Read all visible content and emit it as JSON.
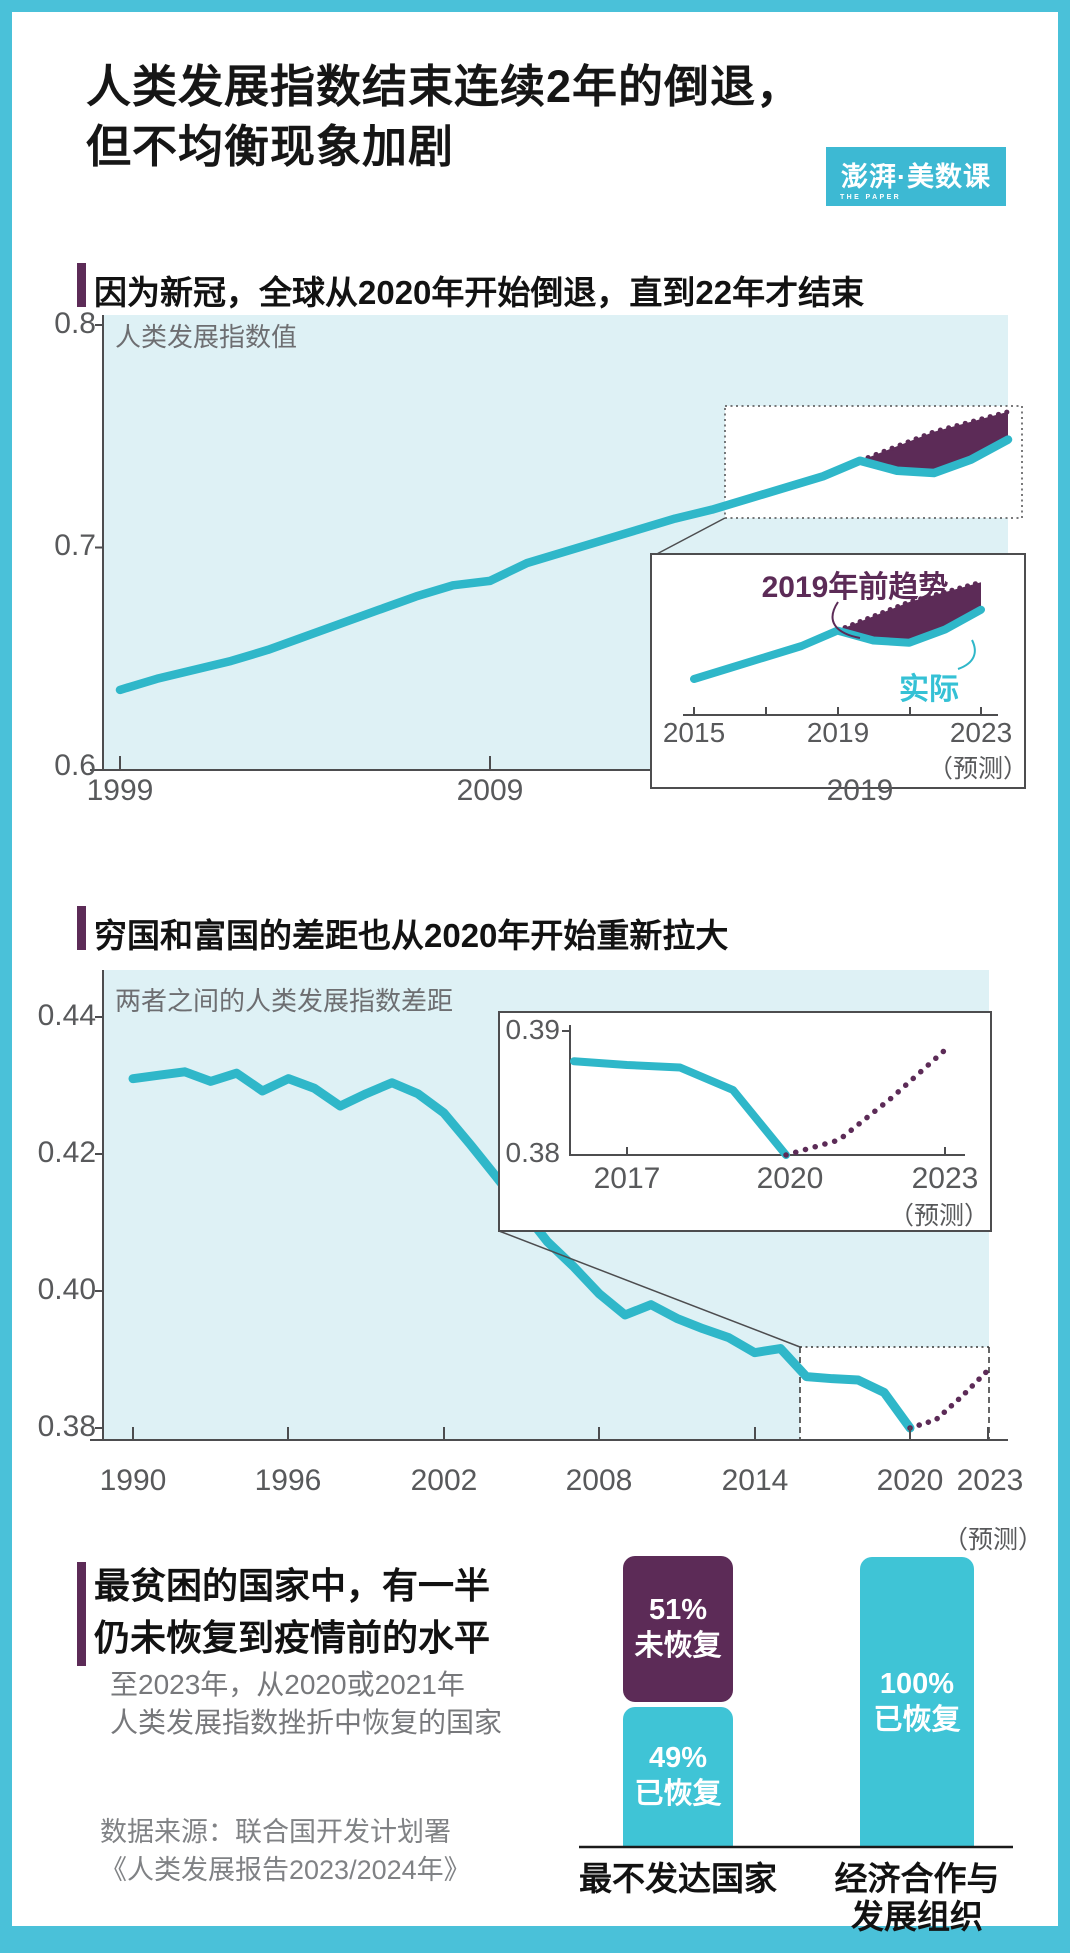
{
  "colors": {
    "teal": "#2fb7c9",
    "teal_fill": "#3fc4d6",
    "light": "#def1f5",
    "purple": "#5c2b57",
    "frame": "#4ac1d9",
    "axis": "#4d4d4f",
    "baseline": "#1a1a1a"
  },
  "header": {
    "title_line1": "人类发展指数结束连续2年的倒退，",
    "title_line2": "但不均衡现象加剧",
    "logo_main": "澎湃·美数课",
    "logo_sub": "THE PAPER"
  },
  "section1": {
    "heading": "因为新冠，全球从2020年开始倒退，直到22年才结束",
    "axis_label": "人类发展指数值",
    "yticks": [
      "0.8",
      "0.7",
      "0.6"
    ],
    "xticks": [
      "1999",
      "2009",
      "2019"
    ],
    "inset": {
      "trend_label": "2019年前趋势",
      "actual_label": "实际",
      "xticks": [
        "2015",
        "2019",
        "2023"
      ],
      "forecast": "（预测）"
    }
  },
  "section2": {
    "heading": "穷国和富国的差距也从2020年开始重新拉大",
    "axis_label": "两者之间的人类发展指数差距",
    "yticks": [
      "0.44",
      "0.42",
      "0.40",
      "0.38"
    ],
    "xticks": [
      "1990",
      "1996",
      "2002",
      "2008",
      "2014",
      "2020",
      "2023"
    ],
    "forecast": "（预测）",
    "inset": {
      "yticks": [
        "0.39",
        "0.38"
      ],
      "xticks": [
        "2017",
        "2020",
        "2023"
      ],
      "forecast": "（预测）"
    }
  },
  "section3": {
    "heading_line1": "最贫困的国家中，有一半",
    "heading_line2": "仍未恢复到疫情前的水平",
    "subtitle_line1": "至2023年，从2020或2021年",
    "subtitle_line2": "人类发展指数挫折中恢复的国家",
    "source_line1": "数据来源：联合国开发计划署",
    "source_line2": "《人类发展报告2023/2024年》",
    "bar1_top_pct": "51%",
    "bar1_top_label": "未恢复",
    "bar1_bottom_pct": "49%",
    "bar1_bottom_label": "已恢复",
    "bar2_pct": "100%",
    "bar2_label": "已恢复",
    "cat1": "最不发达国家",
    "cat2_line1": "经济合作与",
    "cat2_line2": "发展组织"
  },
  "chart_data": [
    {
      "id": "global-hdi",
      "type": "line",
      "title": "因为新冠，全球从2020年开始倒退，直到22年才结束",
      "ylabel": "人类发展指数值",
      "ylim": [
        0.6,
        0.8
      ],
      "yticks": [
        0.8,
        0.7,
        0.6
      ],
      "xticks": [
        1999,
        2009,
        2019
      ],
      "grid": false,
      "series": [
        {
          "name": "实际",
          "style": "solid",
          "x": [
            1999,
            2000,
            2001,
            2002,
            2003,
            2004,
            2005,
            2006,
            2007,
            2008,
            2009,
            2010,
            2011,
            2012,
            2013,
            2014,
            2015,
            2016,
            2017,
            2018,
            2019,
            2020,
            2021,
            2022,
            2023
          ],
          "values": [
            0.636,
            0.641,
            0.645,
            0.649,
            0.654,
            0.66,
            0.666,
            0.672,
            0.678,
            0.683,
            0.685,
            0.693,
            0.698,
            0.703,
            0.708,
            0.713,
            0.717,
            0.722,
            0.727,
            0.732,
            0.739,
            0.7345,
            0.7335,
            0.7395,
            0.7485
          ]
        },
        {
          "name": "2019年前趋势",
          "style": "dotted-area",
          "x": [
            2019,
            2020,
            2021,
            2022,
            2023
          ],
          "values": [
            0.739,
            0.7455,
            0.752,
            0.7565,
            0.761
          ]
        }
      ],
      "inset": {
        "x_range": [
          2015,
          2023
        ],
        "xticks": [
          2015,
          2019,
          2023
        ],
        "forecast_year": 2023
      }
    },
    {
      "id": "hdi-gap",
      "type": "line",
      "title": "穷国和富国的差距也从2020年开始重新拉大",
      "ylabel": "两者之间的人类发展指数差距",
      "ylim": [
        0.38,
        0.445
      ],
      "yticks": [
        0.44,
        0.42,
        0.4,
        0.38
      ],
      "xticks": [
        1990,
        1996,
        2002,
        2008,
        2014,
        2020,
        2023
      ],
      "grid": false,
      "series": [
        {
          "name": "实际",
          "style": "solid",
          "x": [
            1990,
            1991,
            1992,
            1993,
            1994,
            1995,
            1996,
            1997,
            1998,
            1999,
            2000,
            2001,
            2002,
            2003,
            2004,
            2005,
            2006,
            2007,
            2008,
            2009,
            2010,
            2011,
            2012,
            2013,
            2014,
            2015,
            2016,
            2017,
            2018,
            2019,
            2020
          ],
          "values": [
            0.431,
            0.4315,
            0.432,
            0.4306,
            0.4318,
            0.4292,
            0.431,
            0.4296,
            0.427,
            0.4288,
            0.4304,
            0.4288,
            0.426,
            0.4215,
            0.4168,
            0.412,
            0.4072,
            0.4036,
            0.3996,
            0.3965,
            0.398,
            0.396,
            0.3945,
            0.3932,
            0.391,
            0.3916,
            0.3875,
            0.3872,
            0.387,
            0.3852,
            0.38
          ]
        },
        {
          "name": "预测",
          "style": "dotted",
          "x": [
            2020,
            2021,
            2022,
            2023
          ],
          "values": [
            0.38,
            0.3812,
            0.3846,
            0.3884
          ]
        }
      ],
      "inset": {
        "ylim": [
          0.378,
          0.392
        ],
        "yticks": [
          0.39,
          0.38
        ],
        "xticks": [
          2017,
          2020,
          2023
        ],
        "forecast_year": 2023
      }
    },
    {
      "id": "recovery-bars",
      "type": "bar",
      "categories": [
        "最不发达国家",
        "经济合作与发展组织"
      ],
      "series": [
        {
          "name": "已恢复",
          "values": [
            49,
            100
          ]
        },
        {
          "name": "未恢复",
          "values": [
            51,
            0
          ]
        }
      ],
      "unit": "%",
      "subtitle": "至2023年，从2020或2021年人类发展指数挫折中恢复的国家"
    }
  ]
}
